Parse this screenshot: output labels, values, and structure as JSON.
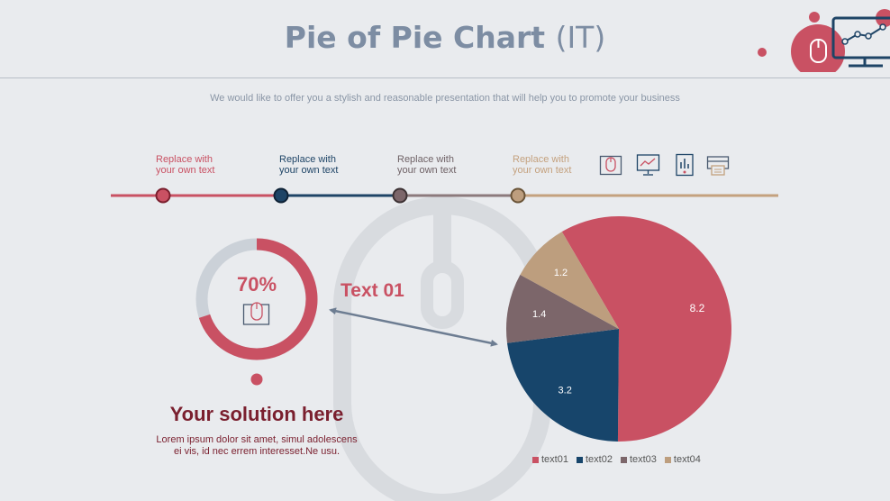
{
  "header": {
    "title_main": "Pie of Pie Chart",
    "title_paren": "(IT)",
    "subtitle": "We would like to offer you a stylish and reasonable presentation that will help you to promote your business"
  },
  "timeline": {
    "steps": [
      {
        "line1": "Replace with",
        "line2": "your own text",
        "color": "#c95163"
      },
      {
        "line1": "Replace with",
        "line2": "your own text",
        "color": "#1e4466"
      },
      {
        "line1": "Replace with",
        "line2": "your own text",
        "color": "#6f6266"
      },
      {
        "line1": "Replace with",
        "line2": "your own text",
        "color": "#c4a17e"
      }
    ],
    "icons": [
      "mouse-icon",
      "monitor-chart-icon",
      "document-chart-icon",
      "printer-icon"
    ]
  },
  "donut": {
    "percent": 0.7,
    "label": "70%",
    "color": "#c95163",
    "track_color": "#cbd1d8"
  },
  "callout": {
    "label": "Text 01"
  },
  "solution": {
    "title": "Your solution here",
    "body_line1": "Lorem ipsum dolor sit amet, simul adolescens",
    "body_line2": "ei vis, id nec errem interesset.Ne usu."
  },
  "chart_data": {
    "type": "pie",
    "slices": [
      {
        "label": "text01",
        "value": 8.2,
        "color": "#c95163"
      },
      {
        "label": "text02",
        "value": 3.2,
        "color": "#17456b"
      },
      {
        "label": "text03",
        "value": 1.4,
        "color": "#7c666a"
      },
      {
        "label": "text04",
        "value": 1.2,
        "color": "#bd9e7e"
      }
    ],
    "data_labels": [
      "8.2",
      "3.2",
      "1.4",
      "1.2"
    ],
    "legend_position": "bottom"
  }
}
